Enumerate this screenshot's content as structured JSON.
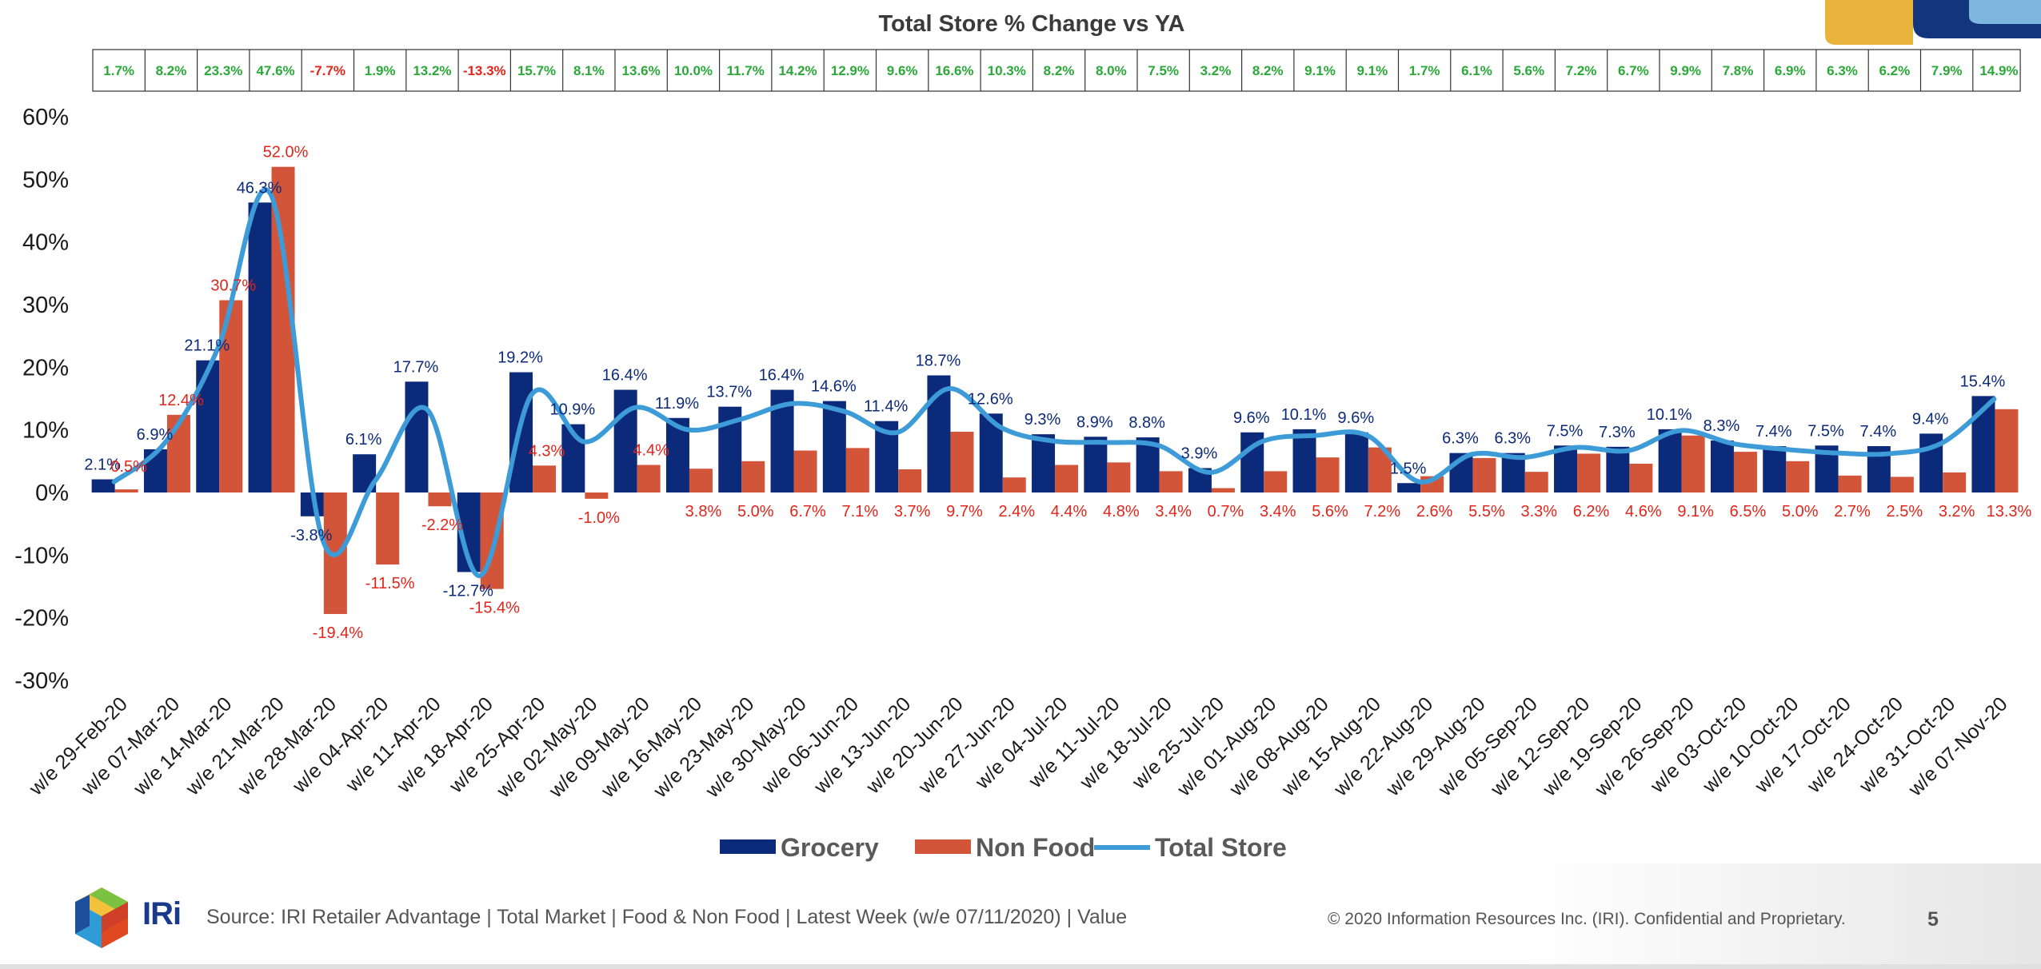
{
  "footer": {
    "logo_text": "IRi",
    "source": "Source: IRI Retailer Advantage | Total Market | Food & Non Food | Latest Week (w/e 07/11/2020) | Value",
    "copyright": "© 2020 Information Resources Inc. (IRI). Confidential and Proprietary.",
    "page_number": "5"
  },
  "colors": {
    "grocery": "#0c2a7a",
    "non_food": "#d2553a",
    "total_store": "#3d9cd8",
    "positive_text": "#2aa838",
    "negative_text": "#e0251b",
    "grocery_label": "#0c2a7a",
    "non_food_label": "#e0251b"
  },
  "chart_data": {
    "type": "bar",
    "title": "Total Store % Change vs YA",
    "categories": [
      "w/e 29-Feb-20",
      "w/e 07-Mar-20",
      "w/e 14-Mar-20",
      "w/e 21-Mar-20",
      "w/e 28-Mar-20",
      "w/e 04-Apr-20",
      "w/e 11-Apr-20",
      "w/e 18-Apr-20",
      "w/e 25-Apr-20",
      "w/e 02-May-20",
      "w/e 09-May-20",
      "w/e 16-May-20",
      "w/e 23-May-20",
      "w/e 30-May-20",
      "w/e 06-Jun-20",
      "w/e 13-Jun-20",
      "w/e 20-Jun-20",
      "w/e 27-Jun-20",
      "w/e 04-Jul-20",
      "w/e 11-Jul-20",
      "w/e 18-Jul-20",
      "w/e 25-Jul-20",
      "w/e 01-Aug-20",
      "w/e 08-Aug-20",
      "w/e 15-Aug-20",
      "w/e 22-Aug-20",
      "w/e 29-Aug-20",
      "w/e 05-Sep-20",
      "w/e 12-Sep-20",
      "w/e 19-Sep-20",
      "w/e 26-Sep-20",
      "w/e 03-Oct-20",
      "w/e 10-Oct-20",
      "w/e 17-Oct-20",
      "w/e 24-Oct-20",
      "w/e 31-Oct-20",
      "w/e 07-Nov-20"
    ],
    "series": [
      {
        "name": "Grocery",
        "kind": "bar",
        "values": [
          2.1,
          6.9,
          21.1,
          46.3,
          -3.8,
          6.1,
          17.7,
          -12.7,
          19.2,
          10.9,
          16.4,
          11.9,
          13.7,
          16.4,
          14.6,
          11.4,
          18.7,
          12.6,
          9.3,
          8.9,
          8.8,
          3.9,
          9.6,
          10.1,
          9.6,
          1.5,
          6.3,
          6.3,
          7.5,
          7.3,
          10.1,
          8.3,
          7.4,
          7.5,
          7.4,
          9.4,
          15.4
        ],
        "labels": [
          "2.1%",
          "6.9%",
          "21.1%",
          "46.3%",
          "-3.8%",
          "6.1%",
          "17.7%",
          "-12.7%",
          "19.2%",
          "10.9%",
          "16.4%",
          "11.9%",
          "13.7%",
          "16.4%",
          "14.6%",
          "11.4%",
          "18.7%",
          "12.6%",
          "9.3%",
          "8.9%",
          "8.8%",
          "3.9%",
          "9.6%",
          "10.1%",
          "9.6%",
          "1.5%",
          "6.3%",
          "6.3%",
          "7.5%",
          "7.3%",
          "10.1%",
          "8.3%",
          "7.4%",
          "7.5%",
          "7.4%",
          "9.4%",
          "15.4%"
        ]
      },
      {
        "name": "Non Food",
        "kind": "bar",
        "values": [
          0.5,
          12.4,
          30.7,
          52.0,
          -19.4,
          -11.5,
          -2.2,
          -15.4,
          4.3,
          -1.0,
          4.4,
          3.8,
          5.0,
          6.7,
          7.1,
          3.7,
          9.7,
          2.4,
          4.4,
          4.8,
          3.4,
          0.7,
          3.4,
          5.6,
          7.2,
          2.6,
          5.5,
          3.3,
          6.2,
          4.6,
          9.1,
          6.5,
          5.0,
          2.7,
          2.5,
          3.2,
          13.3
        ],
        "labels": [
          "0.5%",
          "12.4%",
          "30.7%",
          "52.0%",
          "-19.4%",
          "-11.5%",
          "-2.2%",
          "-15.4%",
          "4.3%",
          "-1.0%",
          "4.4%",
          "3.8%",
          "5.0%",
          "6.7%",
          "7.1%",
          "3.7%",
          "9.7%",
          "2.4%",
          "4.4%",
          "4.8%",
          "3.4%",
          "0.7%",
          "3.4%",
          "5.6%",
          "7.2%",
          "2.6%",
          "5.5%",
          "3.3%",
          "6.2%",
          "4.6%",
          "9.1%",
          "6.5%",
          "5.0%",
          "2.7%",
          "2.5%",
          "3.2%",
          "13.3%"
        ]
      },
      {
        "name": "Total Store",
        "kind": "line",
        "values": [
          1.7,
          8.2,
          23.3,
          47.6,
          -7.7,
          1.9,
          13.2,
          -13.3,
          15.7,
          8.1,
          13.6,
          10.0,
          11.7,
          14.2,
          12.9,
          9.6,
          16.6,
          10.3,
          8.2,
          8.0,
          7.5,
          3.2,
          8.2,
          9.1,
          9.1,
          1.7,
          6.1,
          5.6,
          7.2,
          6.7,
          9.9,
          7.8,
          6.9,
          6.3,
          6.2,
          7.9,
          14.9
        ],
        "labels": [
          "1.7%",
          "8.2%",
          "23.3%",
          "47.6%",
          "-7.7%",
          "1.9%",
          "13.2%",
          "-13.3%",
          "15.7%",
          "8.1%",
          "13.6%",
          "10.0%",
          "11.7%",
          "14.2%",
          "12.9%",
          "9.6%",
          "16.6%",
          "10.3%",
          "8.2%",
          "8.0%",
          "7.5%",
          "3.2%",
          "8.2%",
          "9.1%",
          "9.1%",
          "1.7%",
          "6.1%",
          "5.6%",
          "7.2%",
          "6.7%",
          "9.9%",
          "7.8%",
          "6.9%",
          "6.3%",
          "6.2%",
          "7.9%",
          "14.9%"
        ]
      }
    ],
    "ylim": [
      -30,
      60
    ],
    "yticks": [
      "60%",
      "50%",
      "40%",
      "30%",
      "20%",
      "10%",
      "0%",
      "-10%",
      "-20%",
      "-30%"
    ],
    "grid": false,
    "legend_position": "bottom-center",
    "xlabel": "",
    "ylabel": ""
  }
}
